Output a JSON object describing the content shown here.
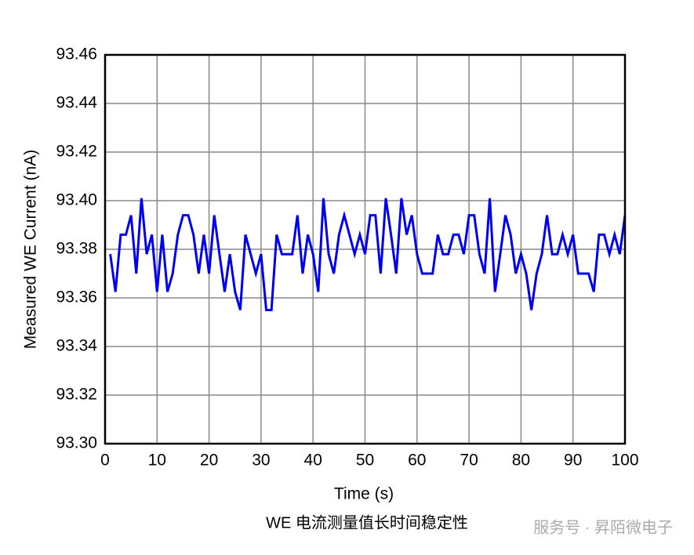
{
  "chart_data": {
    "type": "line",
    "xlabel": "Time (s)",
    "ylabel": "Measured WE Current (nA)",
    "caption": "WE 电流测量值长时间稳定性",
    "watermark": "服务号 · 昇陌微电子",
    "x": [
      1,
      2,
      3,
      4,
      5,
      6,
      7,
      8,
      9,
      10,
      11,
      12,
      13,
      14,
      15,
      16,
      17,
      18,
      19,
      20,
      21,
      22,
      23,
      24,
      25,
      26,
      27,
      28,
      29,
      30,
      31,
      32,
      33,
      34,
      35,
      36,
      37,
      38,
      39,
      40,
      41,
      42,
      43,
      44,
      45,
      46,
      47,
      48,
      49,
      50,
      51,
      52,
      53,
      54,
      55,
      56,
      57,
      58,
      59,
      60,
      61,
      62,
      63,
      64,
      65,
      66,
      67,
      68,
      69,
      70,
      71,
      72,
      73,
      74,
      75,
      76,
      77,
      78,
      79,
      80,
      81,
      82,
      83,
      84,
      85,
      86,
      87,
      88,
      89,
      90,
      91,
      92,
      93,
      94,
      95,
      96,
      97,
      98,
      99,
      100
    ],
    "series": [
      {
        "name": "WE Current",
        "color": "#0000ee",
        "values": [
          93.378,
          93.3625,
          93.386,
          93.386,
          93.394,
          93.37,
          93.401,
          93.378,
          93.386,
          93.3625,
          93.386,
          93.3625,
          93.37,
          93.386,
          93.394,
          93.394,
          93.386,
          93.37,
          93.386,
          93.37,
          93.394,
          93.378,
          93.3625,
          93.378,
          93.3625,
          93.355,
          93.386,
          93.378,
          93.37,
          93.378,
          93.355,
          93.355,
          93.386,
          93.378,
          93.378,
          93.378,
          93.394,
          93.37,
          93.386,
          93.378,
          93.3625,
          93.401,
          93.378,
          93.37,
          93.386,
          93.394,
          93.386,
          93.378,
          93.386,
          93.378,
          93.394,
          93.394,
          93.37,
          93.401,
          93.386,
          93.37,
          93.401,
          93.386,
          93.394,
          93.378,
          93.37,
          93.37,
          93.37,
          93.386,
          93.378,
          93.378,
          93.386,
          93.386,
          93.378,
          93.394,
          93.394,
          93.378,
          93.37,
          93.401,
          93.3625,
          93.378,
          93.394,
          93.386,
          93.37,
          93.378,
          93.37,
          93.355,
          93.37,
          93.378,
          93.394,
          93.378,
          93.378,
          93.386,
          93.378,
          93.386,
          93.37,
          93.37,
          93.37,
          93.3625,
          93.386,
          93.386,
          93.378,
          93.386,
          93.378,
          93.394
        ]
      }
    ],
    "xlim": [
      0,
      100
    ],
    "xticks": [
      0,
      10,
      20,
      30,
      40,
      50,
      60,
      70,
      80,
      90,
      100
    ],
    "ylim": [
      93.3,
      93.46
    ],
    "yticks": [
      {
        "value": 93.3,
        "label": "93.30"
      },
      93.32,
      93.34,
      93.36,
      93.38,
      {
        "value": 93.4,
        "label": "93.40"
      },
      93.42,
      93.44,
      93.46
    ],
    "grid": true
  }
}
